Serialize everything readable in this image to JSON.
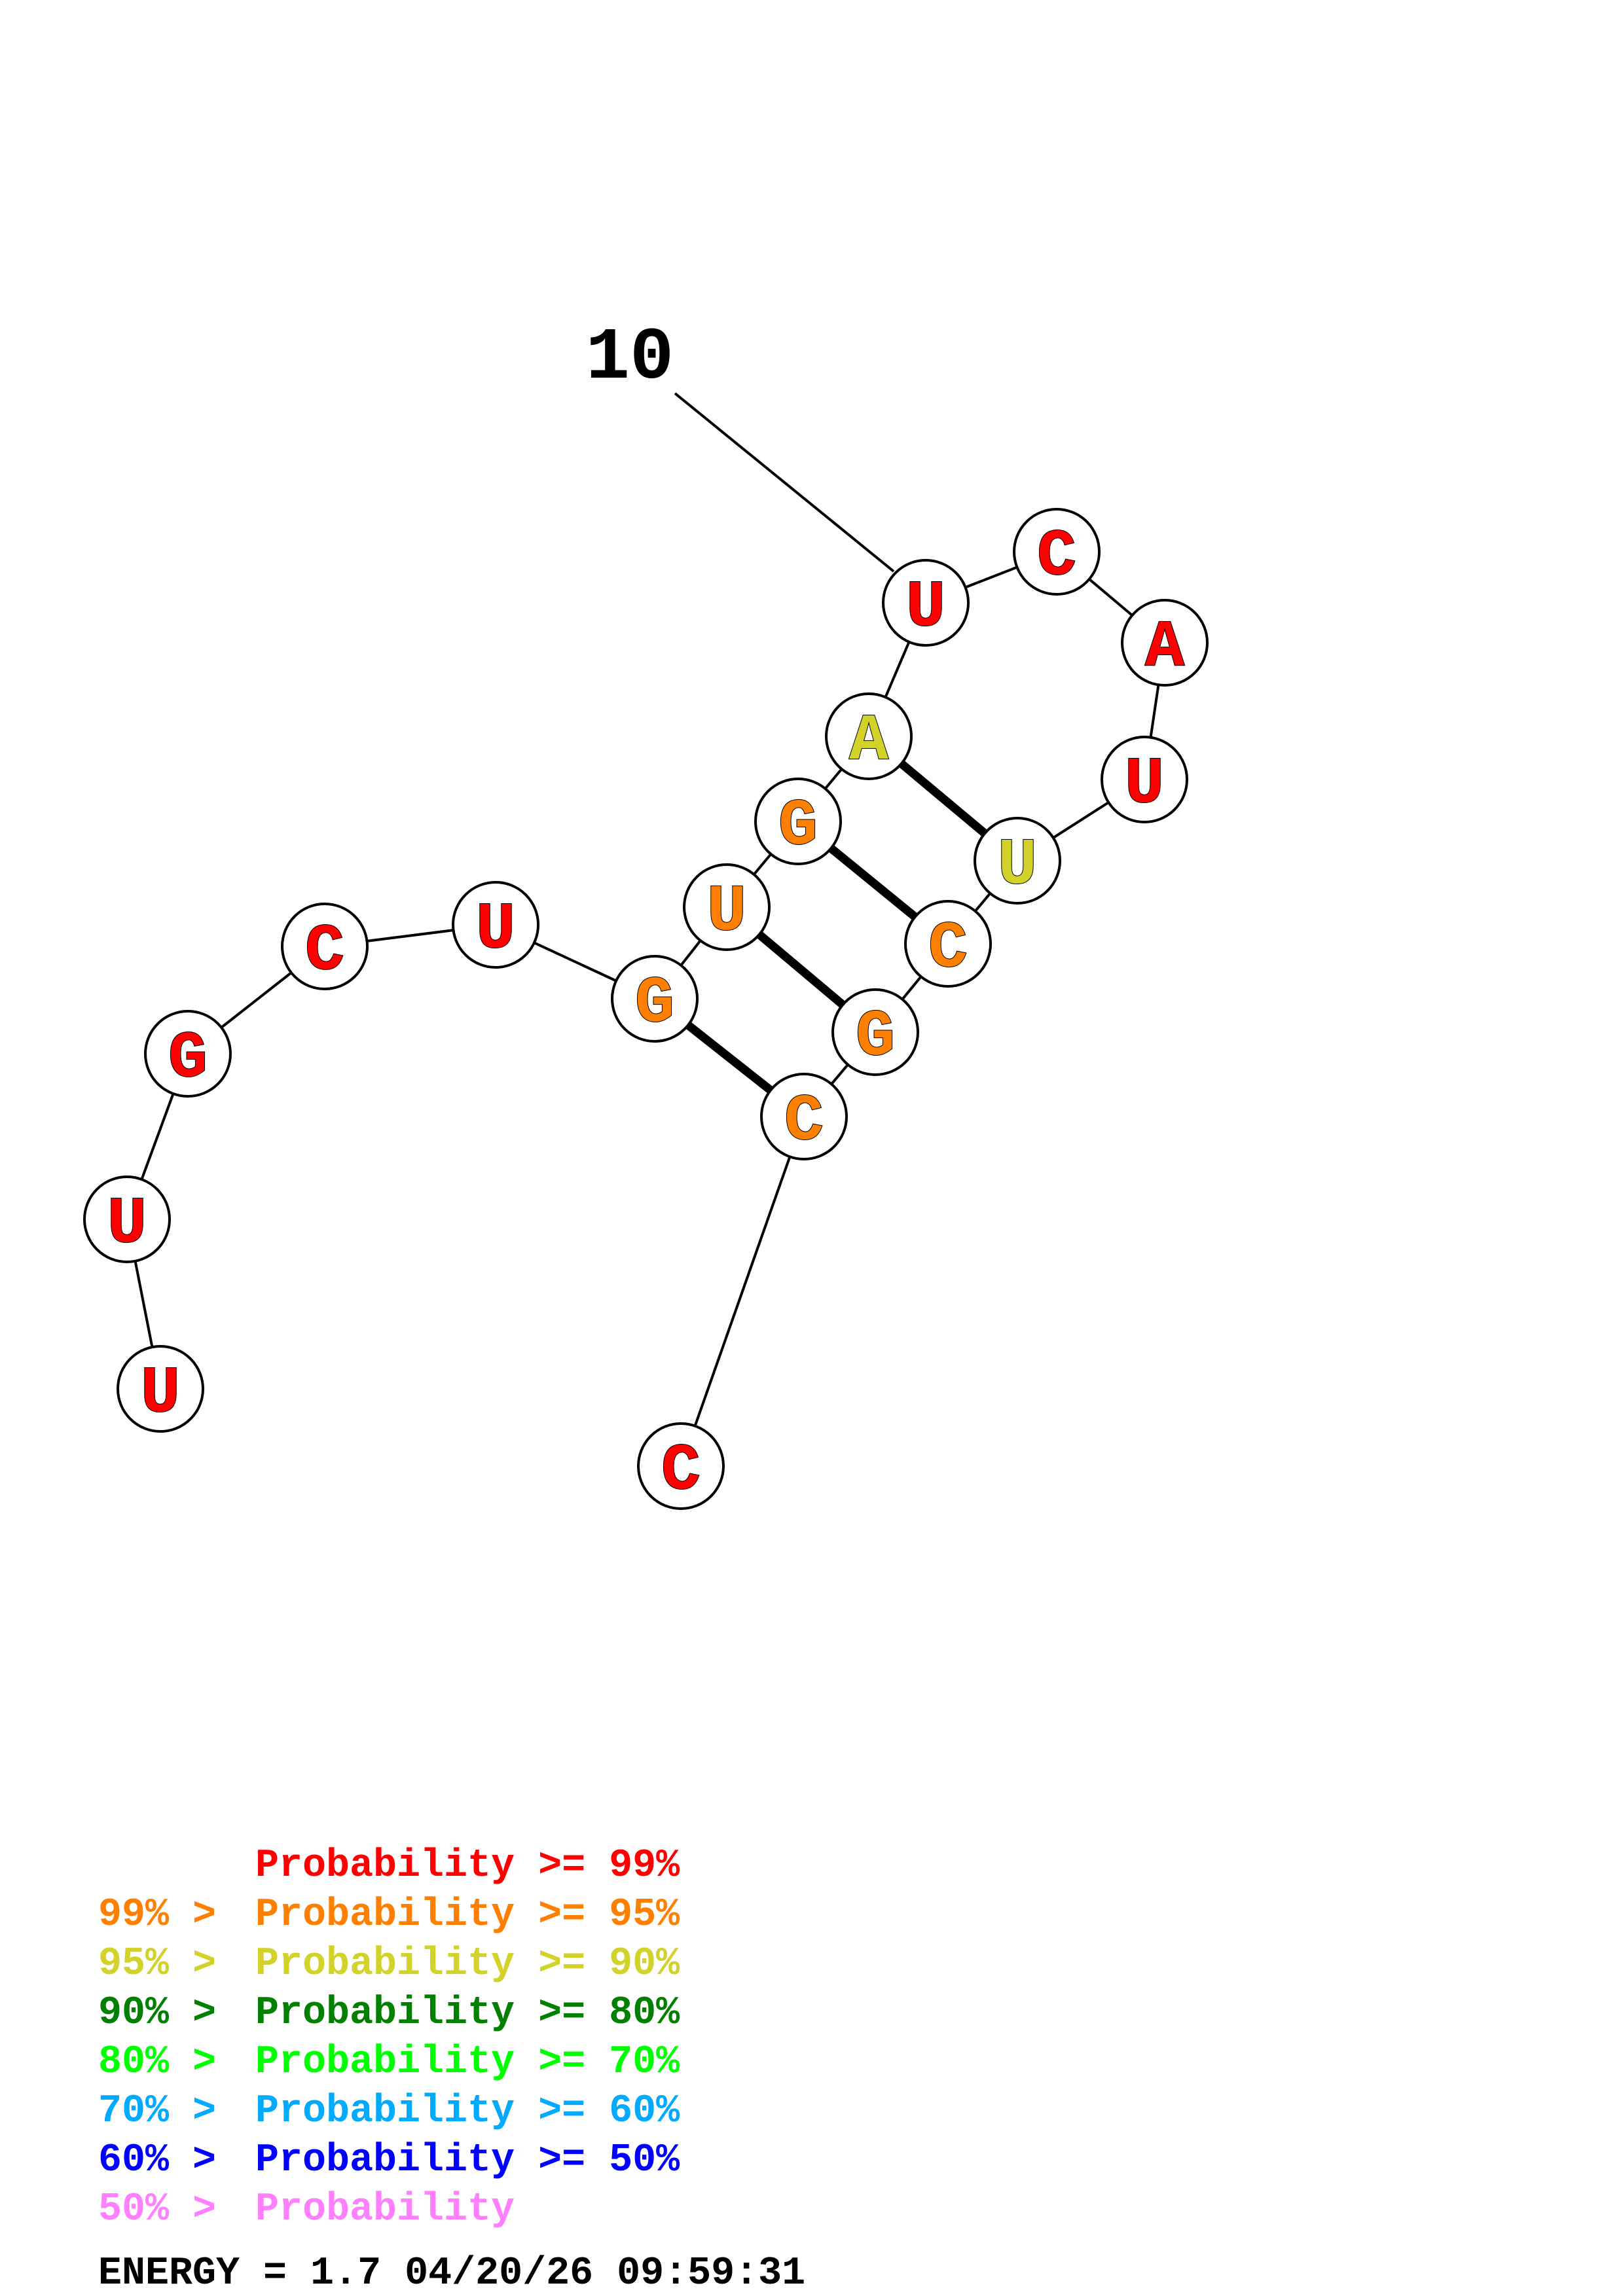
{
  "tick_label": "10",
  "colors": {
    "p99": "#ff0000",
    "p95": "#ff8000",
    "p90": "#d2d22a",
    "p80": "#008000",
    "p70": "#00ff00",
    "p60": "#00aaff",
    "p50": "#0000ff",
    "plow": "#ff80ff"
  },
  "nucleotides": [
    {
      "base": "U",
      "prob": "p99"
    },
    {
      "base": "U",
      "prob": "p99"
    },
    {
      "base": "G",
      "prob": "p99"
    },
    {
      "base": "C",
      "prob": "p99"
    },
    {
      "base": "U",
      "prob": "p99"
    },
    {
      "base": "G",
      "prob": "p95"
    },
    {
      "base": "U",
      "prob": "p95"
    },
    {
      "base": "G",
      "prob": "p95"
    },
    {
      "base": "A",
      "prob": "p90"
    },
    {
      "base": "U",
      "prob": "p99"
    },
    {
      "base": "C",
      "prob": "p99"
    },
    {
      "base": "A",
      "prob": "p99"
    },
    {
      "base": "U",
      "prob": "p99"
    },
    {
      "base": "U",
      "prob": "p90"
    },
    {
      "base": "C",
      "prob": "p95"
    },
    {
      "base": "G",
      "prob": "p95"
    },
    {
      "base": "C",
      "prob": "p95"
    },
    {
      "base": "C",
      "prob": "p99"
    }
  ],
  "pairs": [
    [
      6,
      17
    ],
    [
      7,
      16
    ],
    [
      8,
      15
    ],
    [
      9,
      14
    ]
  ],
  "legend": [
    {
      "prefix": "",
      "label": "Probability >= 99%",
      "color": "p99"
    },
    {
      "prefix": "99% > ",
      "label": "Probability >= 95%",
      "color": "p95"
    },
    {
      "prefix": "95% > ",
      "label": "Probability >= 90%",
      "color": "p90"
    },
    {
      "prefix": "90% > ",
      "label": "Probability >= 80%",
      "color": "p80"
    },
    {
      "prefix": "80% > ",
      "label": "Probability >= 70%",
      "color": "p70"
    },
    {
      "prefix": "70% > ",
      "label": "Probability >= 60%",
      "color": "p60"
    },
    {
      "prefix": "60% > ",
      "label": "Probability >= 50%",
      "color": "p50"
    },
    {
      "prefix": "50% > ",
      "label": "Probability",
      "color": "plow"
    }
  ],
  "footer": "ENERGY = 1.7  04/20/26 09:59:31"
}
